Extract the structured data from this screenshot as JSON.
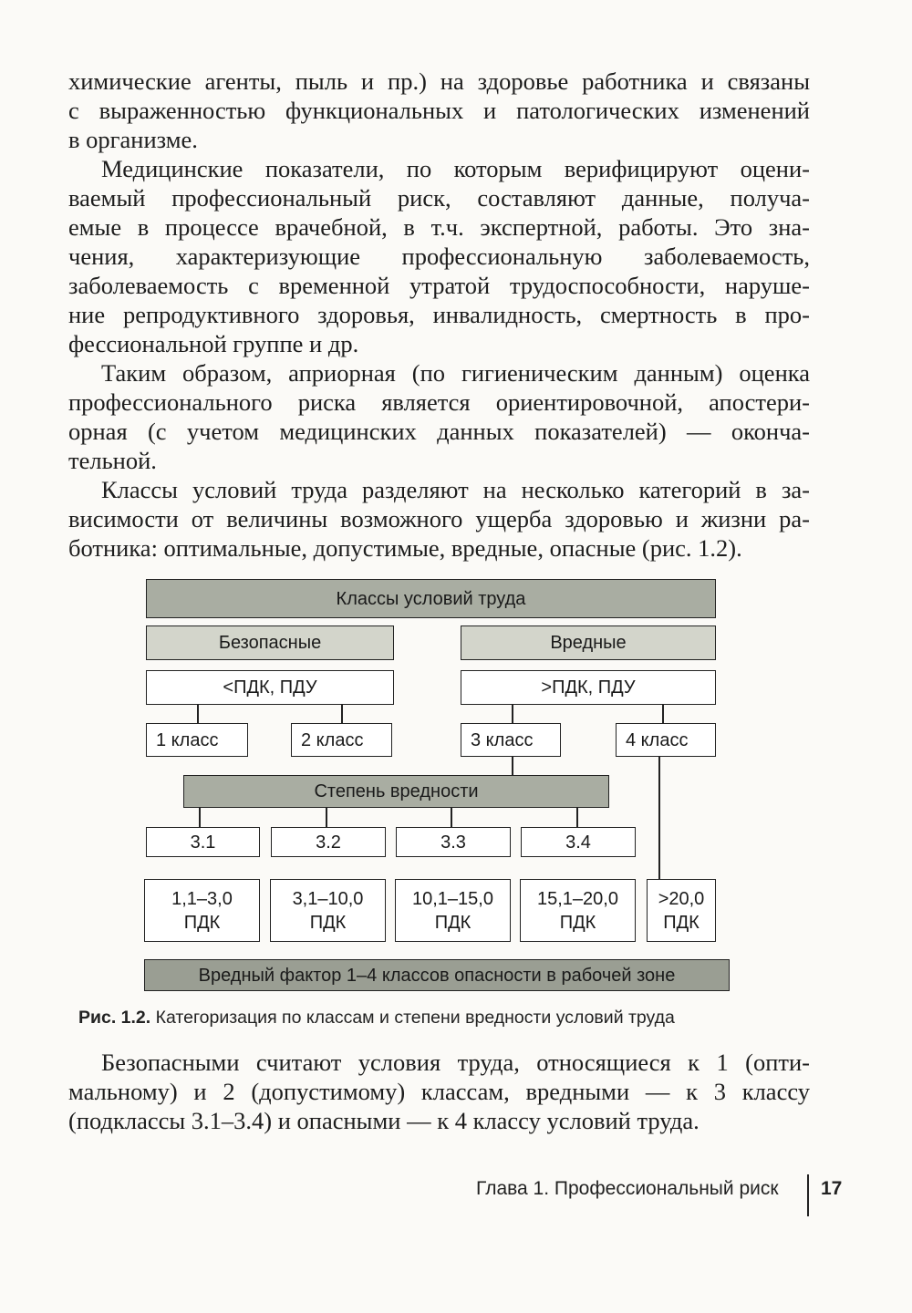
{
  "paragraphs_top": [
    {
      "indent": false,
      "lines": [
        "химические агенты, пыль и пр.) на здоровье работника и связаны",
        "с выраженностью функциональных и патологических изменений",
        "в организме."
      ]
    },
    {
      "indent": true,
      "lines": [
        "Медицинские показатели, по которым верифицируют оцени-",
        "ваемый профессиональный риск, составляют данные, получа-",
        "емые в процессе врачебной, в т.ч. экспертной, работы. Это зна-",
        "чения, характеризующие профессиональную заболеваемость,",
        "заболеваемость с временной утратой трудоспособности, наруше-",
        "ние репродуктивного здоровья, инвалидность, смертность в про-",
        "фессиональной группе и др."
      ]
    },
    {
      "indent": true,
      "lines": [
        "Таким образом, априорная (по гигиеническим данным) оценка",
        "профессионального риска является ориентировочной, апостери-",
        "орная (с учетом медицинских данных показателей) — оконча-",
        "тельной."
      ]
    },
    {
      "indent": true,
      "lines": [
        "Классы условий труда разделяют на несколько категорий в за-",
        "висимости от величины возможного ущерба здоровью и жизни ра-",
        "ботника: оптимальные, допустимые, вредные, опасные (рис. 1.2)."
      ]
    }
  ],
  "diagram": {
    "title": "Классы условий труда",
    "safe": "Безопасные",
    "harmful": "Вредные",
    "below_limit": "<ПДК, ПДУ",
    "above_limit": ">ПДК, ПДУ",
    "class1": "1 класс",
    "class2": "2 класс",
    "class3": "3 класс",
    "class4": "4 класс",
    "degree": "Степень вредности",
    "sub1": "3.1",
    "sub2": "3.2",
    "sub3": "3.3",
    "sub4": "3.4",
    "range1": "1,1–3,0",
    "range2": "3,1–10,0",
    "range3": "10,1–15,0",
    "range4": "15,1–20,0",
    "range5": ">20,0",
    "unit": "ПДК",
    "bottom": "Вредный фактор 1–4 классов опасности в рабочей зоне"
  },
  "caption": {
    "label": "Рис. 1.2.",
    "text": " Категоризация по классам и степени вредности условий труда"
  },
  "paragraphs_bottom": [
    {
      "indent": true,
      "lines": [
        "Безопасными считают условия труда, относящиеся к 1 (опти-",
        "мальному) и 2 (допустимому) классам, вредными — к 3 классу",
        "(подклассы 3.1–3.4) и опасными — к 4 классу условий труда."
      ]
    }
  ],
  "footer": {
    "chapter": "Глава 1. Профессиональный риск",
    "page": "17"
  }
}
